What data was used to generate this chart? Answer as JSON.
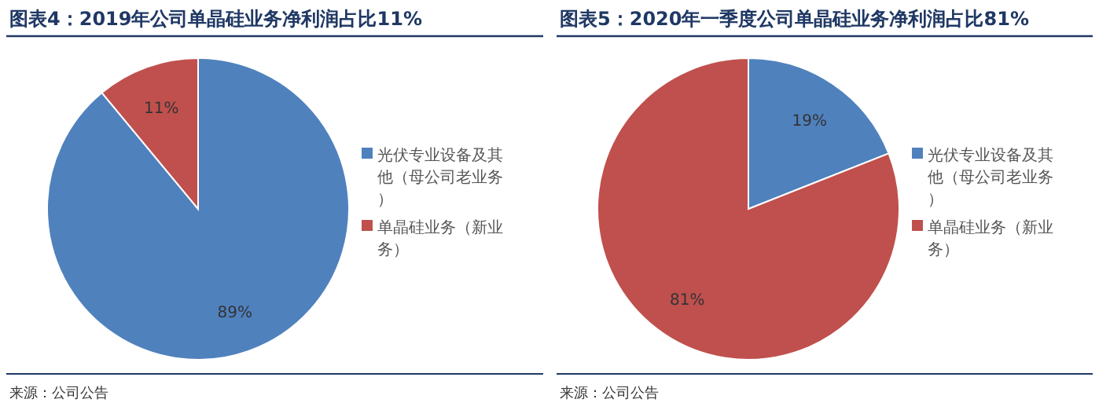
{
  "chart_data": [
    {
      "type": "pie",
      "title": "图表4：2019年公司单晶硅业务净利润占比11%",
      "categories": [
        "光伏专业设备及其他（母公司老业务）",
        "单晶硅业务（新业务）"
      ],
      "values": [
        89,
        11
      ],
      "value_labels": [
        "89%",
        "11%"
      ],
      "colors": [
        "#4f81bd",
        "#c0504d"
      ],
      "legend": "right",
      "annotations": [
        "来源：公司公告"
      ]
    },
    {
      "type": "pie",
      "title": "图表5：2020年一季度公司单晶硅业务净利润占比81%",
      "categories": [
        "光伏专业设备及其他（母公司老业务）",
        "单晶硅业务（新业务）"
      ],
      "values": [
        19,
        81
      ],
      "value_labels": [
        "19%",
        "81%"
      ],
      "colors": [
        "#4f81bd",
        "#c0504d"
      ],
      "legend": "right",
      "annotations": [
        "来源：公司公告"
      ]
    }
  ]
}
